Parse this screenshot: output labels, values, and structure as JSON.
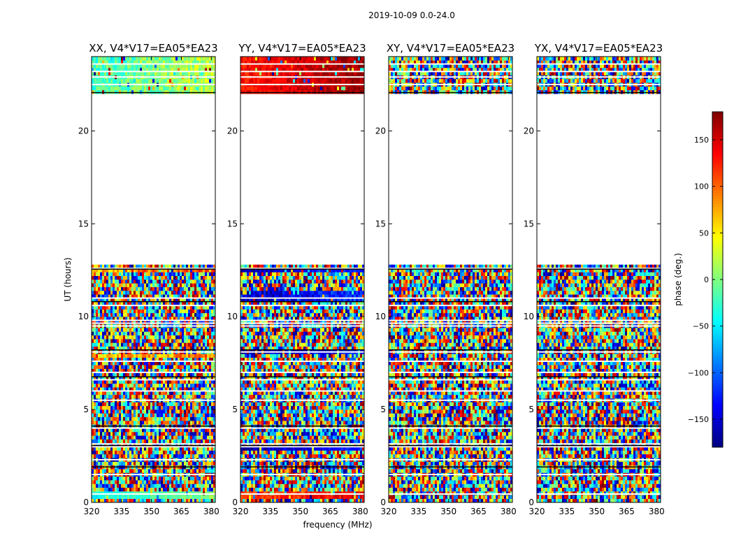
{
  "figure": {
    "suptitle": "2019-10-09 0.0-24.0"
  },
  "chart_data": {
    "type": "heatmap",
    "suptitle": "2019-10-09 0.0-24.0",
    "xlabel": "frequency (MHz)",
    "ylabel": "UT (hours)",
    "xlim": [
      320,
      382
    ],
    "ylim": [
      0,
      24
    ],
    "xticks": [
      "320",
      "335",
      "350",
      "365",
      "380"
    ],
    "yticks": [
      "0",
      "5",
      "10",
      "15",
      "20"
    ],
    "panels": [
      {
        "title": "XX, V4*V17=EA05*EA23",
        "description": "mostly noisy phase; coherent bands near 0.4 h and 22-24 h"
      },
      {
        "title": "YY, V4*V17=EA05*EA23",
        "description": "noisy phase; coherent blue bands near 3 h, 8 h, 12.5 h; red band 22-24 h"
      },
      {
        "title": "XY, V4*V17=EA05*EA23",
        "description": "noisy phase throughout"
      },
      {
        "title": "YX, V4*V17=EA05*EA23",
        "description": "noisy phase throughout"
      }
    ],
    "data_coverage_hours": [
      [
        0,
        12.8
      ],
      [
        22.0,
        24.0
      ]
    ],
    "flagged_gaps_hours": [
      [
        12.8,
        22.0
      ]
    ],
    "colorbar": {
      "label": "phase (deg.)",
      "range": [
        -180,
        180
      ],
      "ticks": [
        "150",
        "100",
        "50",
        "0",
        "−50",
        "−100",
        "−150"
      ],
      "colormap": "jet"
    }
  }
}
